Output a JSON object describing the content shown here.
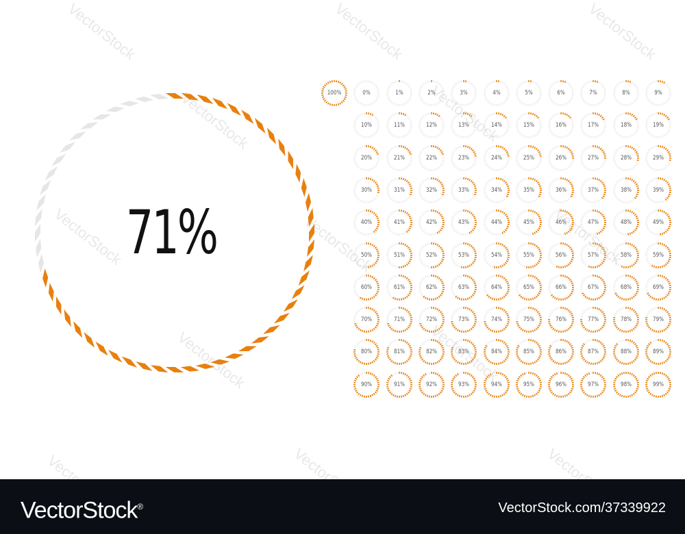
{
  "main_indicator": {
    "label": "71%",
    "value": 71
  },
  "grid": {
    "labels": [
      "100%",
      "0%",
      "1%",
      "2%",
      "3%",
      "4%",
      "5%",
      "6%",
      "7%",
      "8%",
      "9%",
      "10%",
      "11%",
      "12%",
      "13%",
      "14%",
      "15%",
      "16%",
      "17%",
      "18%",
      "19%",
      "20%",
      "21%",
      "22%",
      "23%",
      "24%",
      "25%",
      "26%",
      "27%",
      "28%",
      "29%",
      "30%",
      "31%",
      "32%",
      "33%",
      "34%",
      "35%",
      "36%",
      "37%",
      "38%",
      "39%",
      "40%",
      "41%",
      "42%",
      "43%",
      "44%",
      "45%",
      "46%",
      "47%",
      "48%",
      "49%",
      "50%",
      "51%",
      "52%",
      "53%",
      "54%",
      "55%",
      "56%",
      "57%",
      "58%",
      "59%",
      "60%",
      "61%",
      "62%",
      "63%",
      "64%",
      "65%",
      "66%",
      "67%",
      "68%",
      "69%",
      "70%",
      "71%",
      "72%",
      "73%",
      "74%",
      "75%",
      "76%",
      "77%",
      "78%",
      "79%",
      "80%",
      "81%",
      "82%",
      "83%",
      "84%",
      "85%",
      "86%",
      "87%",
      "88%",
      "89%",
      "90%",
      "91%",
      "92%",
      "93%",
      "94%",
      "95%",
      "96%",
      "97%",
      "98%",
      "99%"
    ]
  },
  "colors": {
    "accent": "#e8800e",
    "track": "#e6e6e6",
    "footer_bg": "#0b0e14"
  },
  "watermark": "VectorStock",
  "footer": {
    "brand": "VectorStock",
    "reg": "®",
    "id": "VectorStock.com/37339922"
  }
}
